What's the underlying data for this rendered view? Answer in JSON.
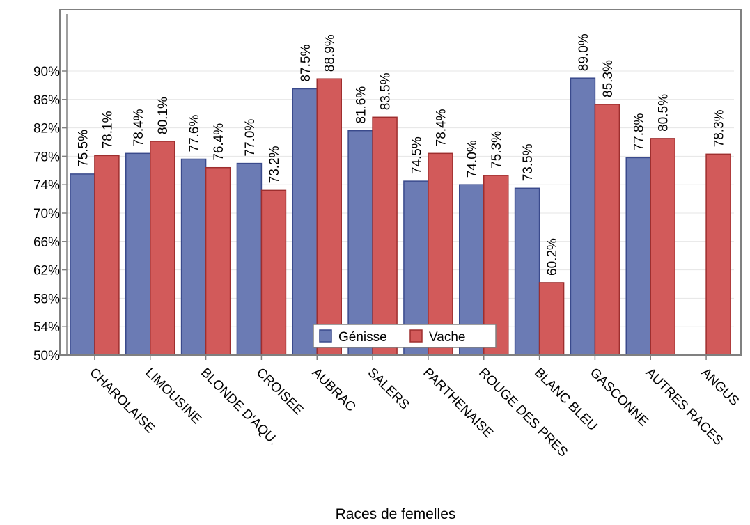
{
  "chart_data": {
    "type": "bar",
    "xlabel": "Races de femelles",
    "ylabel": "",
    "ylim": [
      50,
      100
    ],
    "yticks": [
      50,
      54,
      58,
      62,
      66,
      70,
      74,
      78,
      82,
      86,
      90
    ],
    "ytick_labels": [
      "50%",
      "54%",
      "58%",
      "62%",
      "66%",
      "70%",
      "74%",
      "78%",
      "82%",
      "86%",
      "90%"
    ],
    "grid": true,
    "legend_position": "bottom-center (inside)",
    "categories": [
      "CHAROLAISE",
      "LIMOUSINE",
      "BLONDE D'AQU.",
      "CROISEE",
      "AUBRAC",
      "SALERS",
      "PARTHENAISE",
      "ROUGE DES PRES",
      "BLANC BLEU",
      "GASCONNE",
      "AUTRES RACES",
      "ANGUS"
    ],
    "series": [
      {
        "name": "Génisse",
        "color": "#6b7bb4",
        "edge_color": "#3a4a8c",
        "values": [
          75.5,
          78.4,
          77.6,
          77.0,
          87.5,
          81.6,
          74.5,
          74.0,
          73.5,
          89.0,
          77.8,
          null
        ],
        "labels": [
          "75.5%",
          "78.4%",
          "77.6%",
          "77.0%",
          "87.5%",
          "81.6%",
          "74.5%",
          "74.0%",
          "73.5%",
          "89.0%",
          "77.8%",
          ""
        ]
      },
      {
        "name": "Vache",
        "color": "#d25a5a",
        "edge_color": "#9e2e2e",
        "values": [
          78.1,
          80.1,
          76.4,
          73.2,
          88.9,
          83.5,
          78.4,
          75.3,
          60.2,
          85.3,
          80.5,
          78.3
        ],
        "labels": [
          "78.1%",
          "80.1%",
          "76.4%",
          "73.2%",
          "88.9%",
          "83.5%",
          "78.4%",
          "75.3%",
          "60.2%",
          "85.3%",
          "80.5%",
          "78.3%"
        ]
      }
    ]
  }
}
